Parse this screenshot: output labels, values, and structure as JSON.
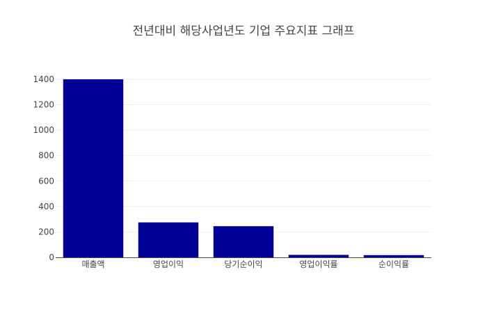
{
  "chart_data": {
    "type": "bar",
    "title": "전년대비 해당사업년도 기업 주요지표 그래프",
    "categories": [
      "매출액",
      "영업이익",
      "당기순이익",
      "영업이익률",
      "순이익률"
    ],
    "series": [
      {
        "values": [
          1400,
          275,
          245,
          19.6,
          17.5
        ]
      }
    ],
    "ylim": [
      0,
      1400
    ],
    "yticks": [
      0,
      200,
      400,
      600,
      800,
      1000,
      1200,
      1400
    ],
    "xlabel": "",
    "ylabel": "",
    "grid": true,
    "legend": "none",
    "bar_color": "#000099"
  }
}
